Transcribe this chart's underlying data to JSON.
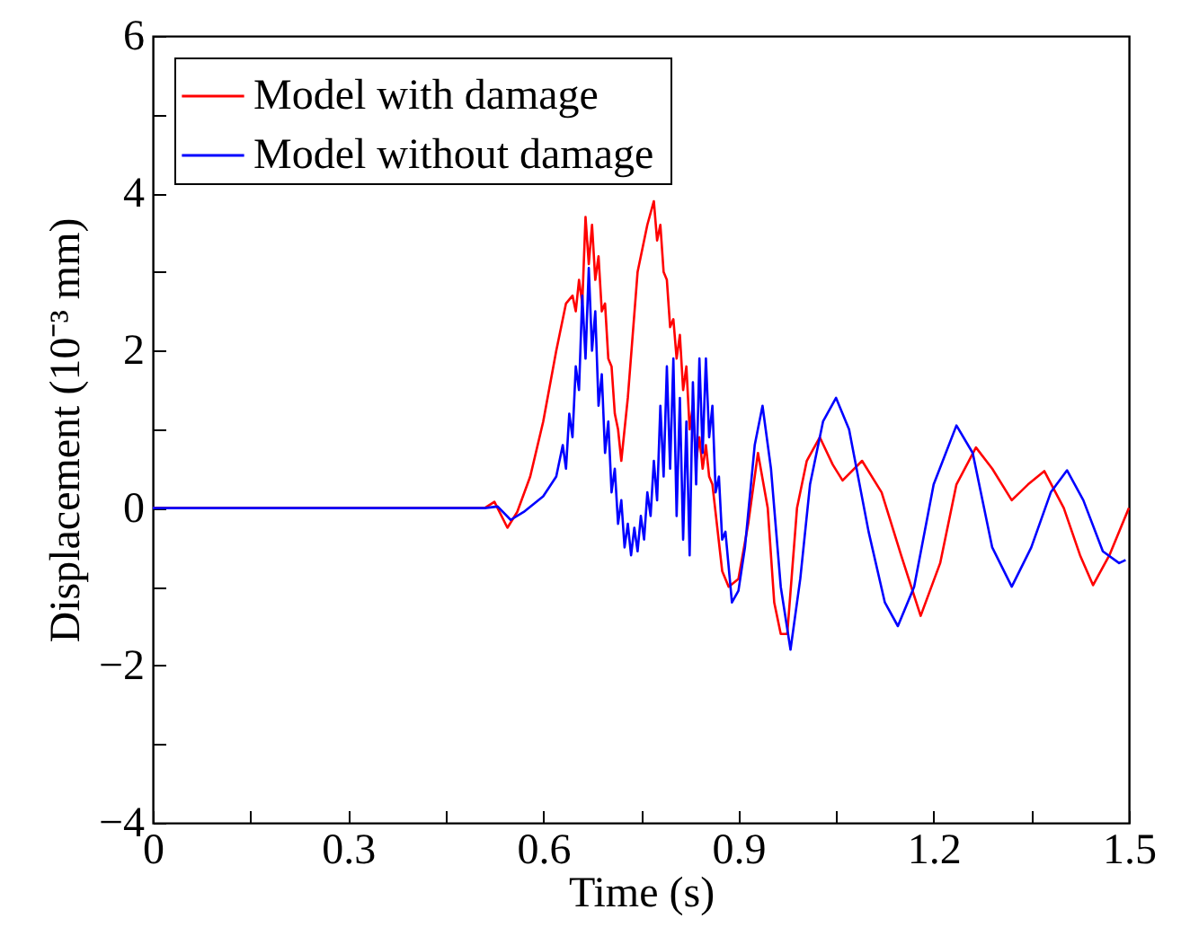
{
  "chart_data": {
    "type": "line",
    "xlabel": "Time (s)",
    "ylabel": "Displacement (10⁻³ mm)",
    "xlim": [
      0,
      1.5
    ],
    "ylim": [
      -4,
      6
    ],
    "xticks": [
      0,
      {
        "value": 0.15,
        "label": null
      },
      0.3,
      {
        "value": 0.45,
        "label": null
      },
      0.6,
      {
        "value": 0.75,
        "label": null
      },
      0.9,
      {
        "value": 1.05,
        "label": null
      },
      1.2,
      {
        "value": 1.35,
        "label": null
      },
      1.5
    ],
    "yticks": [
      {
        "value": -4,
        "label": "−4"
      },
      {
        "value": -3,
        "label": null
      },
      {
        "value": -2,
        "label": "−2"
      },
      {
        "value": -1,
        "label": null
      },
      0,
      {
        "value": 1,
        "label": null
      },
      2,
      {
        "value": 3,
        "label": null
      },
      4,
      {
        "value": 5,
        "label": null
      },
      6
    ],
    "grid": false,
    "legend": "top left",
    "marker": "none",
    "line_style": "solid",
    "series": [
      {
        "name": "Model with  damage",
        "color": "#ff0000",
        "x": [
          0,
          0.51,
          0.525,
          0.545,
          0.56,
          0.58,
          0.6,
          0.62,
          0.635,
          0.645,
          0.65,
          0.655,
          0.66,
          0.665,
          0.67,
          0.675,
          0.68,
          0.685,
          0.69,
          0.695,
          0.7,
          0.705,
          0.71,
          0.715,
          0.72,
          0.73,
          0.745,
          0.76,
          0.77,
          0.775,
          0.78,
          0.785,
          0.79,
          0.795,
          0.8,
          0.805,
          0.81,
          0.815,
          0.82,
          0.825,
          0.83,
          0.835,
          0.84,
          0.845,
          0.85,
          0.855,
          0.86,
          0.875,
          0.885,
          0.9,
          0.915,
          0.93,
          0.945,
          0.955,
          0.965,
          0.975,
          0.99,
          1.005,
          1.025,
          1.045,
          1.06,
          1.09,
          1.12,
          1.15,
          1.18,
          1.21,
          1.235,
          1.265,
          1.29,
          1.32,
          1.345,
          1.37,
          1.4,
          1.425,
          1.445,
          1.47,
          1.5
        ],
        "values": [
          0,
          0,
          0.08,
          -0.25,
          -0.05,
          0.4,
          1.1,
          2.0,
          2.6,
          2.7,
          2.5,
          2.9,
          2.6,
          3.7,
          3.1,
          3.6,
          2.9,
          3.2,
          2.5,
          2.6,
          1.9,
          1.8,
          1.2,
          1.0,
          0.6,
          1.4,
          3.0,
          3.6,
          3.9,
          3.4,
          3.6,
          3.0,
          2.9,
          2.3,
          2.4,
          1.9,
          2.2,
          1.5,
          1.8,
          1.0,
          1.3,
          0.6,
          0.9,
          0.5,
          0.8,
          0.4,
          0.3,
          -0.8,
          -1.0,
          -0.9,
          -0.2,
          0.7,
          0.0,
          -1.2,
          -1.6,
          -1.6,
          0.0,
          0.6,
          0.9,
          0.55,
          0.35,
          0.6,
          0.2,
          -0.6,
          -1.37,
          -0.7,
          0.3,
          0.77,
          0.5,
          0.1,
          0.3,
          0.47,
          0.0,
          -0.6,
          -0.98,
          -0.6,
          0.0
        ]
      },
      {
        "name": "Model without  damage",
        "color": "#0000ff",
        "x": [
          0,
          0.51,
          0.53,
          0.55,
          0.57,
          0.6,
          0.62,
          0.63,
          0.635,
          0.64,
          0.645,
          0.65,
          0.655,
          0.66,
          0.665,
          0.67,
          0.675,
          0.68,
          0.685,
          0.69,
          0.695,
          0.7,
          0.705,
          0.71,
          0.715,
          0.72,
          0.725,
          0.73,
          0.735,
          0.74,
          0.745,
          0.75,
          0.755,
          0.76,
          0.765,
          0.77,
          0.775,
          0.78,
          0.785,
          0.79,
          0.795,
          0.8,
          0.805,
          0.81,
          0.815,
          0.82,
          0.825,
          0.83,
          0.835,
          0.84,
          0.845,
          0.85,
          0.855,
          0.86,
          0.865,
          0.87,
          0.875,
          0.88,
          0.89,
          0.9,
          0.91,
          0.925,
          0.937,
          0.95,
          0.965,
          0.98,
          0.995,
          1.01,
          1.03,
          1.05,
          1.07,
          1.1,
          1.125,
          1.145,
          1.17,
          1.2,
          1.235,
          1.26,
          1.29,
          1.32,
          1.35,
          1.38,
          1.405,
          1.43,
          1.46,
          1.485,
          1.495
        ],
        "values": [
          0,
          0,
          0.02,
          -0.15,
          -0.05,
          0.15,
          0.4,
          0.8,
          0.5,
          1.2,
          0.9,
          1.8,
          1.5,
          2.7,
          1.9,
          3.05,
          2.0,
          2.5,
          1.3,
          1.7,
          0.7,
          1.1,
          0.2,
          0.5,
          -0.2,
          0.1,
          -0.5,
          -0.2,
          -0.6,
          -0.25,
          -0.55,
          -0.1,
          -0.4,
          0.2,
          -0.1,
          0.6,
          0.1,
          1.3,
          0.4,
          1.8,
          0.5,
          1.9,
          -0.1,
          1.4,
          -0.4,
          1.1,
          -0.6,
          1.6,
          0.3,
          1.9,
          0.7,
          1.9,
          0.9,
          1.3,
          0.2,
          0.4,
          -0.4,
          -0.3,
          -1.2,
          -1.05,
          -0.5,
          0.8,
          1.3,
          0.5,
          -1.0,
          -1.8,
          -0.9,
          0.3,
          1.1,
          1.4,
          1.0,
          -0.3,
          -1.2,
          -1.5,
          -1.0,
          0.3,
          1.05,
          0.7,
          -0.5,
          -1.0,
          -0.5,
          0.2,
          0.48,
          0.1,
          -0.55,
          -0.7,
          -0.66
        ]
      }
    ]
  }
}
